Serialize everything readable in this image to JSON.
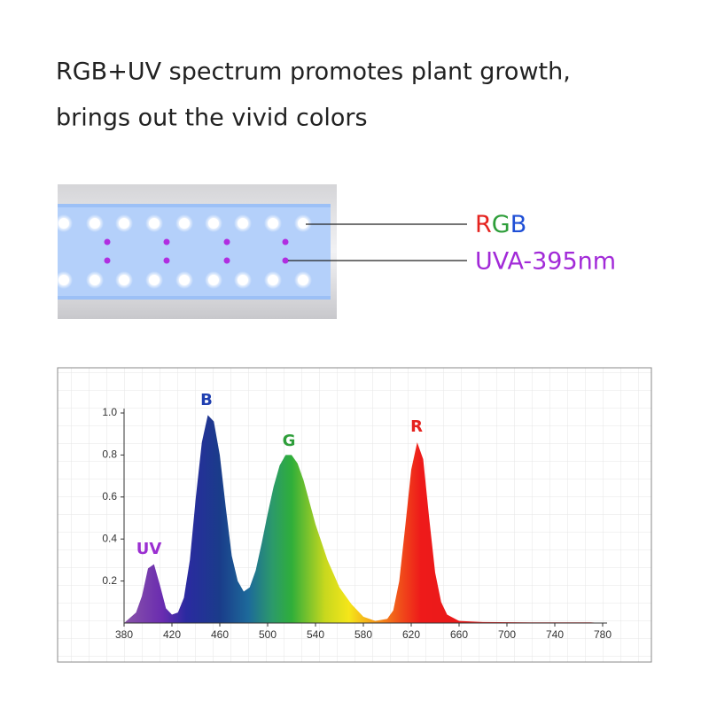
{
  "header": {
    "line1": "RGB+UV spectrum promotes plant growth,",
    "line2": "brings out the vivid colors"
  },
  "callouts": {
    "rgb": [
      {
        "text": "R",
        "color": "#e5231f"
      },
      {
        "text": "G",
        "color": "#2e9e3a"
      },
      {
        "text": "B",
        "color": "#1f4fd6"
      }
    ],
    "uva": {
      "text": "UVA-395nm",
      "color": "#a22ad8"
    }
  },
  "chart_data": {
    "type": "area",
    "x": [
      380,
      390,
      395,
      400,
      405,
      410,
      415,
      420,
      425,
      430,
      435,
      440,
      445,
      450,
      455,
      460,
      465,
      470,
      475,
      480,
      485,
      490,
      495,
      500,
      505,
      510,
      515,
      520,
      525,
      530,
      540,
      550,
      560,
      570,
      580,
      590,
      600,
      605,
      610,
      615,
      620,
      625,
      630,
      635,
      640,
      645,
      650,
      660,
      680,
      720,
      770,
      780
    ],
    "values": [
      0,
      0.05,
      0.13,
      0.26,
      0.28,
      0.18,
      0.07,
      0.04,
      0.05,
      0.12,
      0.3,
      0.6,
      0.86,
      0.99,
      0.96,
      0.8,
      0.55,
      0.32,
      0.2,
      0.15,
      0.17,
      0.25,
      0.38,
      0.52,
      0.65,
      0.75,
      0.8,
      0.8,
      0.76,
      0.68,
      0.47,
      0.3,
      0.17,
      0.09,
      0.03,
      0.01,
      0.02,
      0.06,
      0.2,
      0.46,
      0.73,
      0.86,
      0.78,
      0.5,
      0.24,
      0.1,
      0.04,
      0.01,
      0.005,
      0.003,
      0.003,
      0
    ],
    "xlim": [
      380,
      780
    ],
    "ylim": [
      0,
      1.0
    ],
    "xticks": [
      380,
      420,
      460,
      500,
      540,
      580,
      620,
      660,
      700,
      740,
      780
    ],
    "yticks": [
      {
        "value": 0.2,
        "label": "0.2"
      },
      {
        "value": 0.4,
        "label": "0.4"
      },
      {
        "value": 0.6,
        "label": "0.6"
      },
      {
        "value": 0.8,
        "label": "0.8"
      },
      {
        "value": 1.0,
        "label": "1.0"
      }
    ],
    "annotations": [
      {
        "text": "UV",
        "color": "#9b2fd1"
      },
      {
        "text": "B",
        "color": "#1f3fb0"
      },
      {
        "text": "G",
        "color": "#2e9e3a"
      },
      {
        "text": "R",
        "color": "#e5231f"
      }
    ]
  }
}
